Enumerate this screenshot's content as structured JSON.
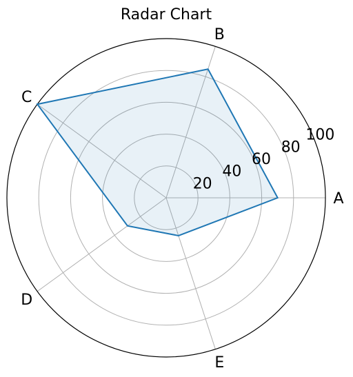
{
  "chart_data": {
    "type": "radar",
    "title": "Radar Chart",
    "categories": [
      "A",
      "B",
      "C",
      "D",
      "E"
    ],
    "values": [
      70,
      85,
      100,
      30,
      25
    ],
    "r_ticks": [
      "20",
      "40",
      "60",
      "80",
      "100"
    ],
    "rlim": [
      0,
      100
    ],
    "grid": true,
    "colors": {
      "line": "#1f77b4",
      "fill": "#1f77b4",
      "grid": "#b0b0b0",
      "frame": "#000000"
    }
  }
}
